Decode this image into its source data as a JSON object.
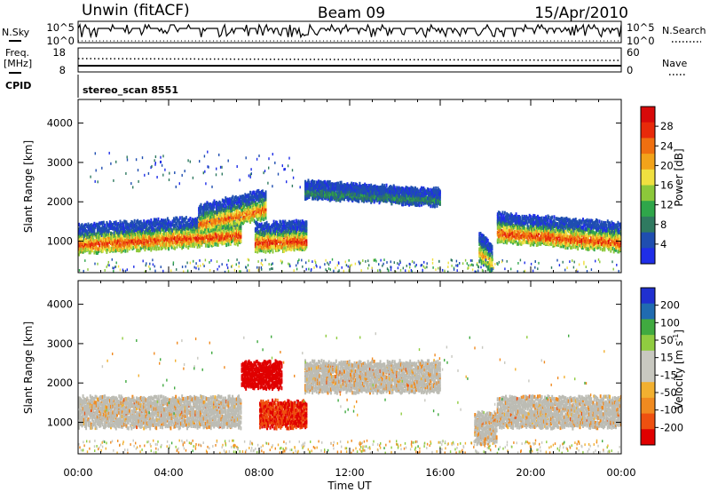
{
  "header": {
    "station": "Unwin (fitACF)",
    "beam": "Beam 09",
    "date": "15/Apr/2010"
  },
  "top_panels": {
    "nsky_label": "N.Sky",
    "nsky_ticks": [
      "10^5",
      "10^0"
    ],
    "nsearch_label": "N.Search",
    "nsearch_ticks": [
      "10^5",
      "10^0"
    ],
    "freq_label": "Freq.",
    "freq_unit": "[MHz]",
    "freq_ticks": [
      "18",
      "8"
    ],
    "nave_label": "Nave",
    "nave_ticks": [
      "60",
      "0"
    ],
    "cpid_label": "CPID",
    "cpid_value": "stereo_scan 8551"
  },
  "colors": {
    "power": [
      "#1f2ee8",
      "#1f4eb0",
      "#2f7a60",
      "#2fa64a",
      "#8cc83a",
      "#f0e040",
      "#f2a31a",
      "#ef6f10",
      "#e82a0a",
      "#d80a0a"
    ],
    "velocity": [
      "#e00000",
      "#ee5010",
      "#f08a20",
      "#f2b030",
      "#c8c8c0",
      "#c8c8c0",
      "#90cc40",
      "#40aa40",
      "#206bb0",
      "#2030d0"
    ],
    "ground_scatter": "#bcbcb4"
  },
  "chart_data": [
    {
      "type": "heatmap",
      "panel": "power",
      "ylabel": "Slant Range [km]",
      "xlabel": "Time UT",
      "y_ticks": [
        "1000",
        "2000",
        "3000",
        "4000"
      ],
      "y_tick_values": [
        1000,
        2000,
        3000,
        4000
      ],
      "ylim": [
        200,
        4600
      ],
      "x_ticks": [
        "00:00",
        "04:00",
        "08:00",
        "12:00",
        "16:00",
        "20:00",
        "00:00"
      ],
      "x_tick_values": [
        0,
        4,
        8,
        12,
        16,
        20,
        24
      ],
      "xlim": [
        0,
        24
      ],
      "colorbar_label": "Power [dB]",
      "colorbar_ticks": [
        "28",
        "24",
        "20",
        "16",
        "12",
        "8",
        "4"
      ],
      "colorbar_range": [
        0,
        32
      ],
      "regions": [
        {
          "t0": 0.0,
          "t1": 7.2,
          "range_center_start": 1000,
          "range_center_end": 1250,
          "peak_db": 28
        },
        {
          "t0": 5.3,
          "t1": 8.3,
          "range_center_start": 1500,
          "range_center_end": 1900,
          "peak_db": 26
        },
        {
          "t0": 7.8,
          "t1": 10.1,
          "range_center_start": 1050,
          "range_center_end": 1100,
          "peak_db": 29
        },
        {
          "t0": 10.0,
          "t1": 16.0,
          "range_center_start": 2300,
          "range_center_end": 2100,
          "peak_db": 10
        },
        {
          "t0": 17.7,
          "t1": 18.3,
          "range_center_start": 800,
          "range_center_end": 500,
          "peak_db": 22
        },
        {
          "t0": 18.5,
          "t1": 24.0,
          "range_center_start": 1300,
          "range_center_end": 1050,
          "peak_db": 28
        }
      ]
    },
    {
      "type": "heatmap",
      "panel": "velocity",
      "ylabel": "Slant Range [km]",
      "xlabel": "Time UT",
      "y_ticks": [
        "1000",
        "2000",
        "3000",
        "4000"
      ],
      "y_tick_values": [
        1000,
        2000,
        3000,
        4000
      ],
      "ylim": [
        200,
        4600
      ],
      "x_ticks": [
        "00:00",
        "04:00",
        "08:00",
        "12:00",
        "16:00",
        "20:00",
        "00:00"
      ],
      "x_tick_values": [
        0,
        4,
        8,
        12,
        16,
        20,
        24
      ],
      "xlim": [
        0,
        24
      ],
      "colorbar_label": "Velocity [m s",
      "colorbar_label_exp": "-1",
      "colorbar_label_end": "]",
      "colorbar_ticks": [
        "200",
        "100",
        "50",
        "15",
        "-15",
        "-50",
        "-100",
        "-200"
      ],
      "regions": [
        {
          "t0": 0.0,
          "t1": 7.2,
          "range_center": 1300,
          "velocity": -15,
          "ground": true
        },
        {
          "t0": 7.2,
          "t1": 9.0,
          "range_center": 2250,
          "velocity": -200
        },
        {
          "t0": 8.0,
          "t1": 10.1,
          "range_center": 1250,
          "velocity": -150
        },
        {
          "t0": 10.0,
          "t1": 16.0,
          "range_center": 2200,
          "velocity": -15,
          "ground": true
        },
        {
          "t0": 17.5,
          "t1": 18.5,
          "range_center": 900,
          "velocity": -15,
          "ground": true
        },
        {
          "t0": 18.5,
          "t1": 24.0,
          "range_center": 1300,
          "velocity": -15,
          "ground": true
        }
      ]
    }
  ]
}
